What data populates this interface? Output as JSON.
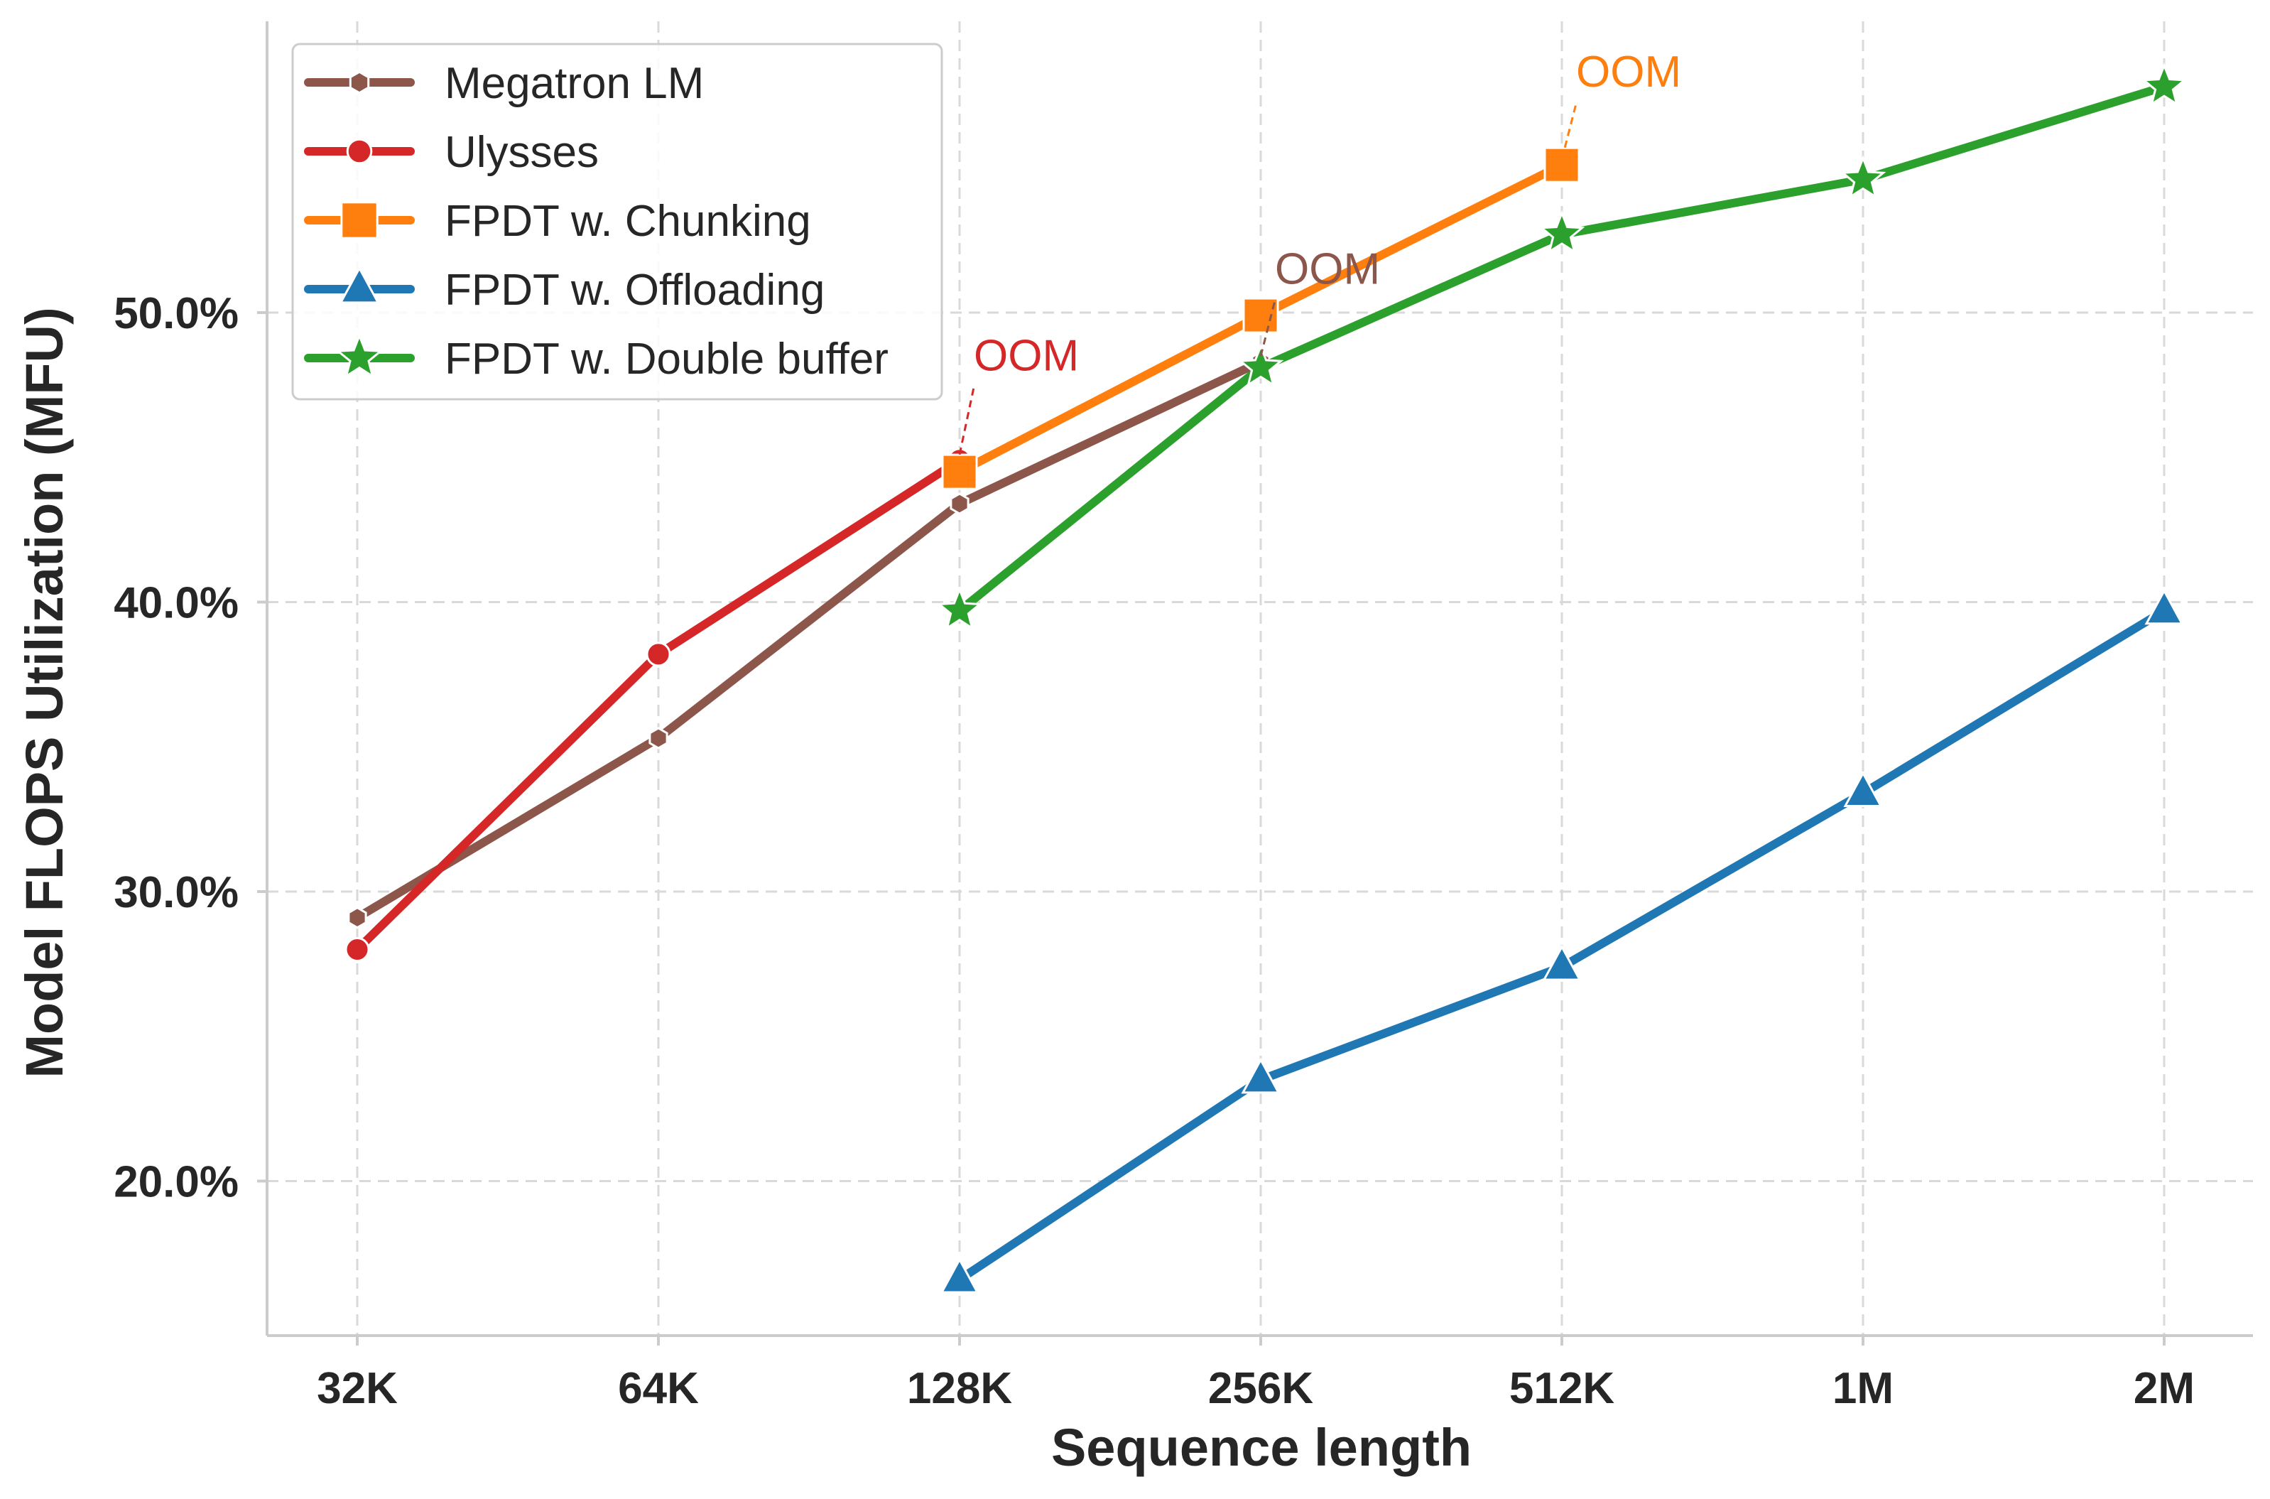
{
  "chart_data": {
    "type": "line",
    "title": "",
    "xlabel": "Sequence length",
    "ylabel": "Model FLOPS Utilization (MFU)",
    "categories": [
      "32K",
      "64K",
      "128K",
      "256K",
      "512K",
      "1M",
      "2M"
    ],
    "y_ticks": [
      20.0,
      30.0,
      40.0,
      50.0
    ],
    "y_tick_labels": [
      "20.0%",
      "30.0%",
      "40.0%",
      "50.0%"
    ],
    "ylim": [
      14.6,
      56.5
    ],
    "grid": true,
    "legend_position": "top-left",
    "series": [
      {
        "name": "Megatron LM",
        "color": "#8c564b",
        "marker": "hexagon",
        "values": [
          29.1,
          35.3,
          43.4,
          48.3,
          null,
          null,
          null
        ]
      },
      {
        "name": "Ulysses",
        "color": "#d62728",
        "marker": "circle",
        "values": [
          28.0,
          38.2,
          44.9,
          null,
          null,
          null,
          null
        ]
      },
      {
        "name": "FPDT w. Chunking",
        "color": "#ff7f0e",
        "marker": "square",
        "values": [
          null,
          null,
          44.5,
          49.9,
          55.1,
          null,
          null
        ]
      },
      {
        "name": "FPDT w. Offloading",
        "color": "#1f77b4",
        "marker": "triangle",
        "values": [
          null,
          null,
          16.6,
          23.5,
          27.4,
          33.4,
          39.7
        ]
      },
      {
        "name": "FPDT w. Double buffer",
        "color": "#2ca02c",
        "marker": "star",
        "values": [
          null,
          null,
          39.7,
          48.1,
          52.7,
          54.6,
          57.8
        ]
      }
    ],
    "annotations": [
      {
        "text": "OOM",
        "series": "Ulysses",
        "category": "128K",
        "color": "#d62728",
        "at_value": 48.0
      },
      {
        "text": "OOM",
        "series": "Megatron LM",
        "category": "256K",
        "color": "#8c564b",
        "at_value": 51.0
      },
      {
        "text": "OOM",
        "series": "FPDT w. Chunking",
        "category": "512K",
        "color": "#ff7f0e",
        "at_value": 57.8
      }
    ]
  }
}
